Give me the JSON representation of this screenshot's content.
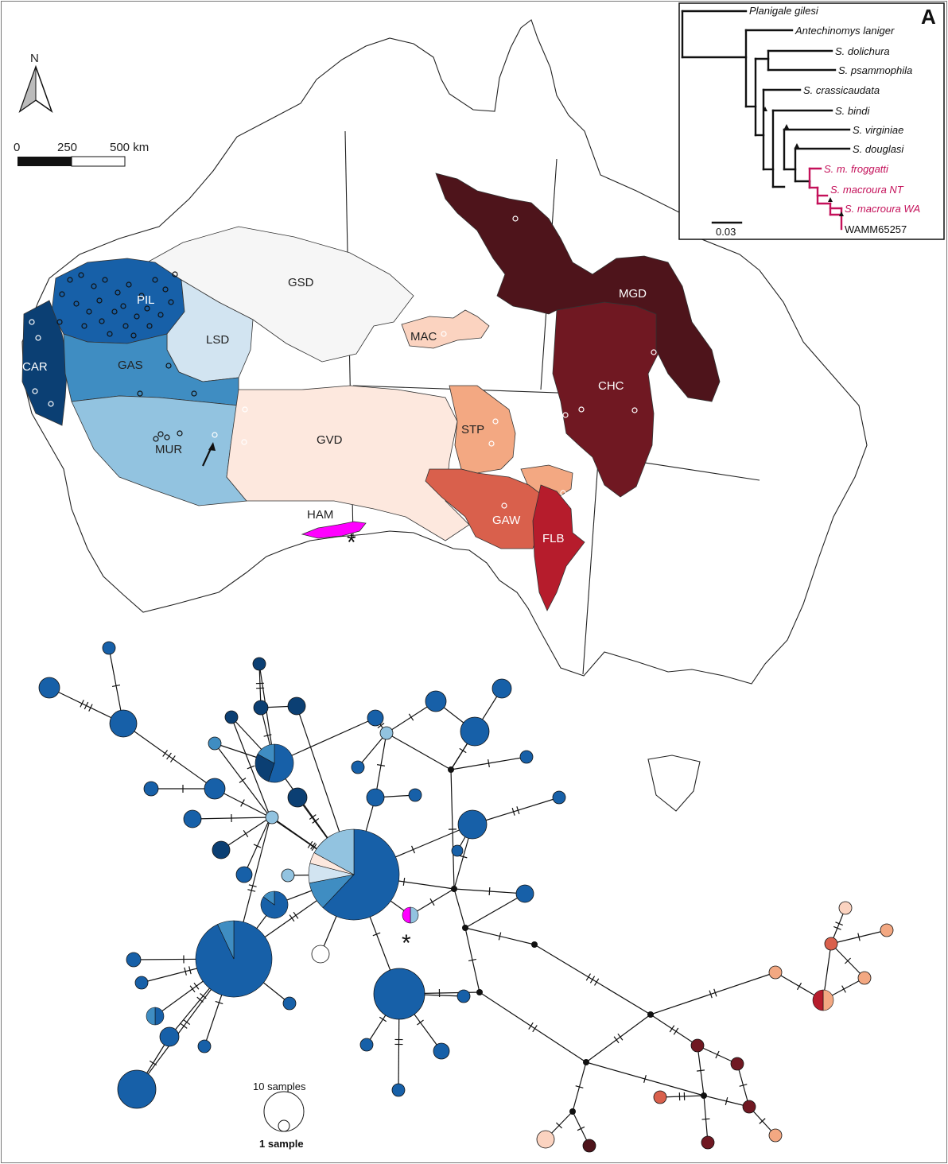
{
  "panel_label": "A",
  "north_label": "N",
  "scale_bar": {
    "ticks": [
      "0",
      "250",
      "500 km"
    ]
  },
  "colors": {
    "PIL": "#1760a8",
    "CAR": "#0b3f73",
    "GAS": "#3f8dc2",
    "LSD": "#d2e4f1",
    "MUR": "#92c3e0",
    "GSD": "#f6f6f6",
    "MAC": "#fbd3c0",
    "GVD": "#fde8de",
    "STP": "#f3a882",
    "GAW": "#d9604c",
    "FLB": "#b61c2c",
    "CHC": "#701822",
    "MGD": "#4e141b",
    "HAM": "#ff00ff",
    "land": "#ffffff",
    "outline": "#222222"
  },
  "regions": [
    {
      "code": "GSD",
      "color": "#f6f6f6",
      "text_color": "dark"
    },
    {
      "code": "PIL",
      "color": "#1760a8",
      "text_color": "light"
    },
    {
      "code": "LSD",
      "color": "#d2e4f1",
      "text_color": "dark"
    },
    {
      "code": "CAR",
      "color": "#0b3f73",
      "text_color": "light"
    },
    {
      "code": "GAS",
      "color": "#3f8dc2",
      "text_color": "dark"
    },
    {
      "code": "MUR",
      "color": "#92c3e0",
      "text_color": "dark"
    },
    {
      "code": "GVD",
      "color": "#fde8de",
      "text_color": "dark"
    },
    {
      "code": "MAC",
      "color": "#fbd3c0",
      "text_color": "dark"
    },
    {
      "code": "STP",
      "color": "#f3a882",
      "text_color": "dark"
    },
    {
      "code": "GAW",
      "color": "#d9604c",
      "text_color": "light"
    },
    {
      "code": "FLB",
      "color": "#b61c2c",
      "text_color": "light"
    },
    {
      "code": "CHC",
      "color": "#701822",
      "text_color": "light"
    },
    {
      "code": "MGD",
      "color": "#4e141b",
      "text_color": "light"
    },
    {
      "code": "HAM",
      "color": "#ff00ff",
      "text_color": "dark"
    }
  ],
  "tree": {
    "taxa": [
      {
        "name": "Planigale gilesi",
        "highlight": false
      },
      {
        "name": "Antechinomys laniger",
        "highlight": false
      },
      {
        "name": "S. dolichura",
        "highlight": false
      },
      {
        "name": "S. psammophila",
        "highlight": false
      },
      {
        "name": "S. crassicaudata",
        "highlight": false
      },
      {
        "name": "S. bindi",
        "highlight": false
      },
      {
        "name": "S. virginiae",
        "highlight": false
      },
      {
        "name": "S. douglasi",
        "highlight": false
      },
      {
        "name": "S. m. froggatti",
        "highlight": true
      },
      {
        "name": "S. macroura NT",
        "highlight": true
      },
      {
        "name": "S. macroura WA",
        "highlight": true
      },
      {
        "name": "WAMM65257",
        "highlight": true
      }
    ],
    "scale_label": "0.03",
    "highlight_color": "#c4115a"
  },
  "network_legend": {
    "large": "10 samples",
    "small": "1 sample"
  },
  "markers": {
    "asterisk": "*"
  }
}
